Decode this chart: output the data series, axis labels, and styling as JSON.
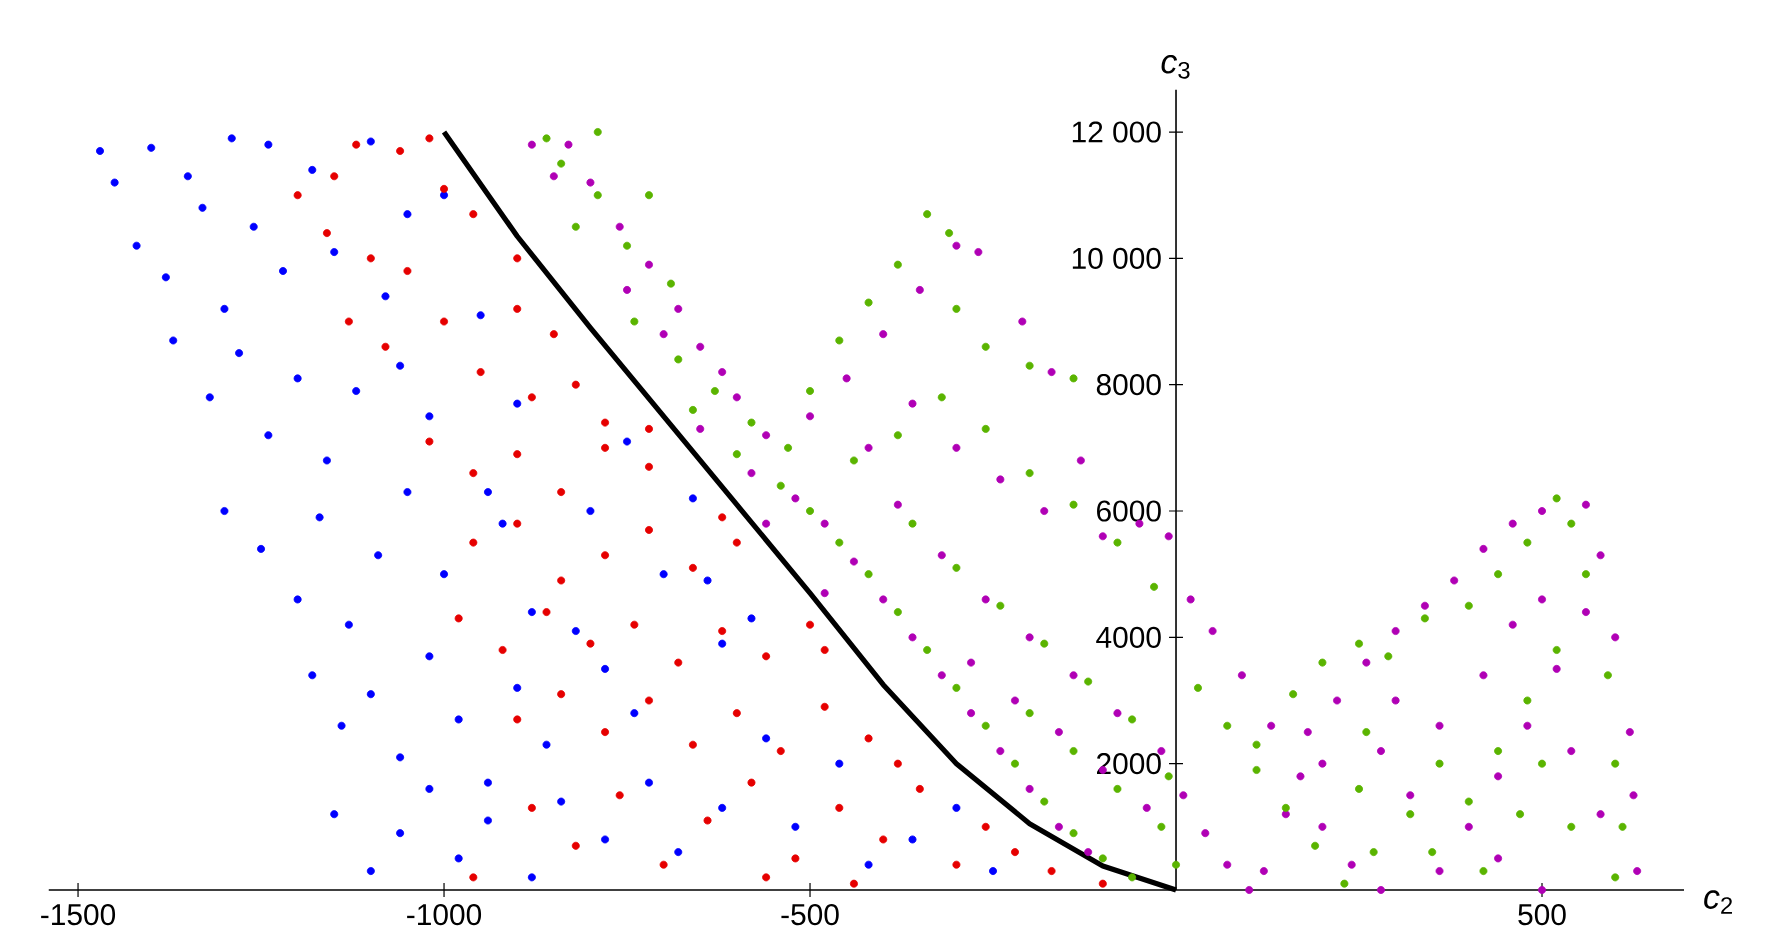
{
  "chart_data": {
    "type": "scatter",
    "xlabel": "*c*$_{2}$",
    "ylabel": "*c*$_{3}$",
    "grid": false,
    "xlim": [
      -1540,
      694
    ],
    "ylim": [
      0,
      12670
    ],
    "xticks": [
      -1500,
      -1000,
      -500,
      500
    ],
    "yticks": [
      2000,
      4000,
      6000,
      8000,
      {
        "value": 10000,
        "label": "10 000"
      },
      {
        "value": 12000,
        "label": "12 000"
      }
    ],
    "series": [
      {
        "marker": "circle",
        "color": "#0000ff",
        "x": [
          -1470,
          -1400,
          -1350,
          -1290,
          -1240,
          -1450,
          -1420,
          -1380,
          -1330,
          -1300,
          -1260,
          -1220,
          -1180,
          -1150,
          -1100,
          -1080,
          -1050,
          -1000,
          -1370,
          -1320,
          -1280,
          -1240,
          -1200,
          -1160,
          -1120,
          -1060,
          -1020,
          -950,
          -900,
          -1300,
          -1250,
          -1200,
          -1170,
          -1130,
          -1090,
          -1050,
          -1000,
          -940,
          -920,
          -880,
          -1180,
          -1140,
          -1100,
          -1060,
          -1020,
          -980,
          -940,
          -900,
          -860,
          -820,
          -780,
          -740,
          -700,
          -660,
          -620,
          -1150,
          -1100,
          -1060,
          -1020,
          -980,
          -940,
          -880,
          -840,
          -780,
          -720,
          -680,
          -620,
          -560,
          -520,
          -460,
          -420,
          -360,
          -300,
          -250,
          -580,
          -640,
          -800,
          -750
        ],
        "values": [
          11700,
          11750,
          11300,
          11900,
          11800,
          11200,
          10200,
          9700,
          10800,
          9200,
          10500,
          9800,
          11400,
          10100,
          11850,
          9400,
          10700,
          11000,
          8700,
          7800,
          8500,
          7200,
          8100,
          6800,
          7900,
          8300,
          7500,
          9100,
          7700,
          6000,
          5400,
          4600,
          5900,
          4200,
          5300,
          6300,
          5000,
          6300,
          5800,
          4400,
          3400,
          2600,
          3100,
          2100,
          3700,
          2700,
          1700,
          3200,
          2300,
          4100,
          3500,
          2800,
          5000,
          6200,
          3900,
          1200,
          300,
          900,
          1600,
          500,
          1100,
          200,
          1400,
          800,
          1700,
          600,
          1300,
          2400,
          1000,
          2000,
          400,
          800,
          1300,
          300,
          4300,
          4900,
          6000,
          7100
        ]
      },
      {
        "marker": "circle",
        "color": "#e60000",
        "x": [
          -1020,
          -1060,
          -1120,
          -1150,
          -1000,
          -1200,
          -1160,
          -1100,
          -1050,
          -960,
          -900,
          -900,
          -850,
          -1130,
          -1080,
          -1000,
          -950,
          -880,
          -820,
          -780,
          -1020,
          -960,
          -900,
          -840,
          -780,
          -720,
          -720,
          -960,
          -900,
          -840,
          -780,
          -720,
          -660,
          -600,
          -620,
          -980,
          -920,
          -860,
          -800,
          -740,
          -680,
          -620,
          -560,
          -500,
          -480,
          -900,
          -840,
          -780,
          -720,
          -660,
          -600,
          -540,
          -480,
          -420,
          -380,
          -880,
          -820,
          -760,
          -700,
          -640,
          -580,
          -520,
          -460,
          -400,
          -350,
          -300,
          -260,
          -220,
          -170,
          -100,
          -560,
          -440,
          -960
        ],
        "values": [
          11900,
          11700,
          11800,
          11300,
          11100,
          11000,
          10400,
          10000,
          9800,
          10700,
          10000,
          9200,
          8800,
          9000,
          8600,
          9000,
          8200,
          7800,
          8000,
          7400,
          7100,
          6600,
          6900,
          6300,
          7000,
          6700,
          7300,
          5500,
          5800,
          4900,
          5300,
          5700,
          5100,
          5500,
          5900,
          4300,
          3800,
          4400,
          3900,
          4200,
          3600,
          4100,
          3700,
          4200,
          3800,
          2700,
          3100,
          2500,
          3000,
          2300,
          2800,
          2200,
          2900,
          2400,
          2000,
          1300,
          700,
          1500,
          400,
          1100,
          1700,
          500,
          1300,
          800,
          1600,
          400,
          1000,
          600,
          300,
          100,
          200,
          100,
          200
        ]
      },
      {
        "marker": "circle",
        "color": "#b000b5",
        "x": [
          -880,
          -830,
          -800,
          -850,
          -760,
          -720,
          -680,
          -650,
          -600,
          -750,
          -700,
          -620,
          -560,
          -650,
          -580,
          -520,
          -480,
          -560,
          -440,
          -400,
          -480,
          -360,
          -320,
          -280,
          -240,
          -200,
          -160,
          -120,
          -500,
          -450,
          -400,
          -350,
          -300,
          -270,
          -210,
          -170,
          -420,
          -360,
          -300,
          -240,
          -180,
          -130,
          -100,
          -50,
          -10,
          -380,
          -320,
          -260,
          -200,
          -140,
          -80,
          -20,
          10,
          40,
          70,
          100,
          -280,
          -220,
          -160,
          -100,
          -40,
          20,
          50,
          90,
          130,
          170,
          200,
          240,
          280,
          180,
          220,
          260,
          300,
          340,
          380,
          420,
          460,
          500,
          560,
          580,
          600,
          620,
          625,
          630,
          560,
          520,
          480,
          440,
          400,
          360,
          320,
          280,
          300,
          360,
          420,
          460,
          500,
          540,
          580,
          440,
          500,
          200,
          150,
          120
        ],
        "values": [
          11800,
          11800,
          11200,
          11300,
          10500,
          9900,
          9200,
          8600,
          7800,
          9500,
          8800,
          8200,
          7200,
          7300,
          6600,
          6200,
          5800,
          5800,
          5200,
          4600,
          4700,
          4000,
          3400,
          2800,
          2200,
          1600,
          1000,
          600,
          7500,
          8100,
          8800,
          9500,
          10200,
          10100,
          9000,
          8200,
          7000,
          7700,
          7000,
          6500,
          6000,
          6800,
          5600,
          5800,
          5600,
          6100,
          5300,
          4600,
          4000,
          3400,
          2800,
          2200,
          1500,
          900,
          400,
          0,
          3600,
          3000,
          2500,
          1900,
          1300,
          4600,
          4100,
          3400,
          2600,
          1800,
          1000,
          400,
          0,
          2500,
          3000,
          3600,
          4100,
          4500,
          4900,
          5400,
          5800,
          6000,
          6100,
          5300,
          4000,
          2500,
          1500,
          300,
          4400,
          3500,
          2600,
          1800,
          1000,
          300,
          1500,
          2200,
          3000,
          2600,
          3400,
          4200,
          4600,
          2200,
          1200,
          500,
          0,
          2000,
          1200,
          300
        ]
      },
      {
        "marker": "circle",
        "color": "#5ab400",
        "x": [
          -860,
          -790,
          -840,
          -790,
          -820,
          -750,
          -720,
          -690,
          -740,
          -680,
          -630,
          -580,
          -530,
          -660,
          -600,
          -540,
          -500,
          -460,
          -420,
          -380,
          -340,
          -300,
          -260,
          -220,
          -180,
          -140,
          -100,
          -60,
          -500,
          -460,
          -420,
          -380,
          -340,
          -310,
          -300,
          -260,
          -200,
          -140,
          -440,
          -380,
          -320,
          -260,
          -200,
          -140,
          -80,
          -30,
          -360,
          -300,
          -240,
          -180,
          -120,
          -60,
          -10,
          -200,
          -140,
          -80,
          -20,
          0,
          30,
          70,
          110,
          150,
          190,
          230,
          110,
          160,
          200,
          250,
          290,
          340,
          400,
          440,
          480,
          520,
          540,
          560,
          590,
          600,
          610,
          600,
          520,
          480,
          440,
          400,
          360,
          320,
          260,
          270,
          350,
          420,
          470,
          500,
          540,
          250
        ],
        "values": [
          11900,
          12000,
          11500,
          11000,
          10500,
          10200,
          11000,
          9600,
          9000,
          8400,
          7900,
          7400,
          7000,
          7600,
          6900,
          6400,
          6000,
          5500,
          5000,
          4400,
          3800,
          3200,
          2600,
          2000,
          1400,
          900,
          500,
          200,
          7900,
          8700,
          9300,
          9900,
          10700,
          10400,
          9200,
          8600,
          8300,
          8100,
          6800,
          7200,
          7800,
          7300,
          6600,
          6100,
          5500,
          4800,
          5800,
          5100,
          4500,
          3900,
          3300,
          2700,
          1800,
          2800,
          2200,
          1600,
          1000,
          400,
          3200,
          2600,
          1900,
          1300,
          700,
          100,
          2300,
          3100,
          3600,
          3900,
          3700,
          4300,
          4500,
          5000,
          5500,
          6200,
          5800,
          5000,
          3400,
          2000,
          1000,
          200,
          3800,
          3000,
          2200,
          1400,
          2000,
          1200,
          2500,
          600,
          600,
          300,
          1200,
          2000,
          1000,
          1600
        ]
      },
      {
        "type": "line",
        "marker": "none",
        "color": "#000000",
        "x": [
          -1000,
          -900,
          -800,
          -700,
          -600,
          -500,
          -400,
          -300,
          -200,
          -100,
          0
        ],
        "values": [
          12000,
          10350,
          8900,
          7500,
          6100,
          4700,
          3250,
          2000,
          1050,
          380,
          0
        ]
      }
    ]
  }
}
